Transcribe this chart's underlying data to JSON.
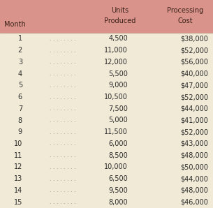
{
  "header_bg": "#D9938A",
  "row_bg": "#F0EAD6",
  "header_text_color": "#3a2018",
  "row_text_color": "#2a2a2a",
  "dot_color": "#8a7a70",
  "col1_header": "Month",
  "col2_header_line1": "Units",
  "col2_header_line2": "Produced",
  "col3_header_line1": "Processing",
  "col3_header_line2": "Cost",
  "months": [
    1,
    2,
    3,
    4,
    5,
    6,
    7,
    8,
    9,
    10,
    11,
    12,
    13,
    14,
    15
  ],
  "dots": ". . . . . . . .",
  "units_str": [
    "4,500",
    "11,000",
    "12,000",
    "5,500",
    "9,000",
    "10,500",
    "7,500",
    "5,000",
    "11,500",
    "6,000",
    "8,500",
    "10,000",
    "6,500",
    "9,500",
    "8,000"
  ],
  "costs_str": [
    "$38,000",
    "$52,000",
    "$56,000",
    "$40,000",
    "$47,000",
    "$52,000",
    "$44,000",
    "$41,000",
    "$52,000",
    "$43,000",
    "$48,000",
    "$50,000",
    "$44,000",
    "$48,000",
    "$46,000"
  ],
  "figsize": [
    3.05,
    2.98
  ],
  "dpi": 100
}
